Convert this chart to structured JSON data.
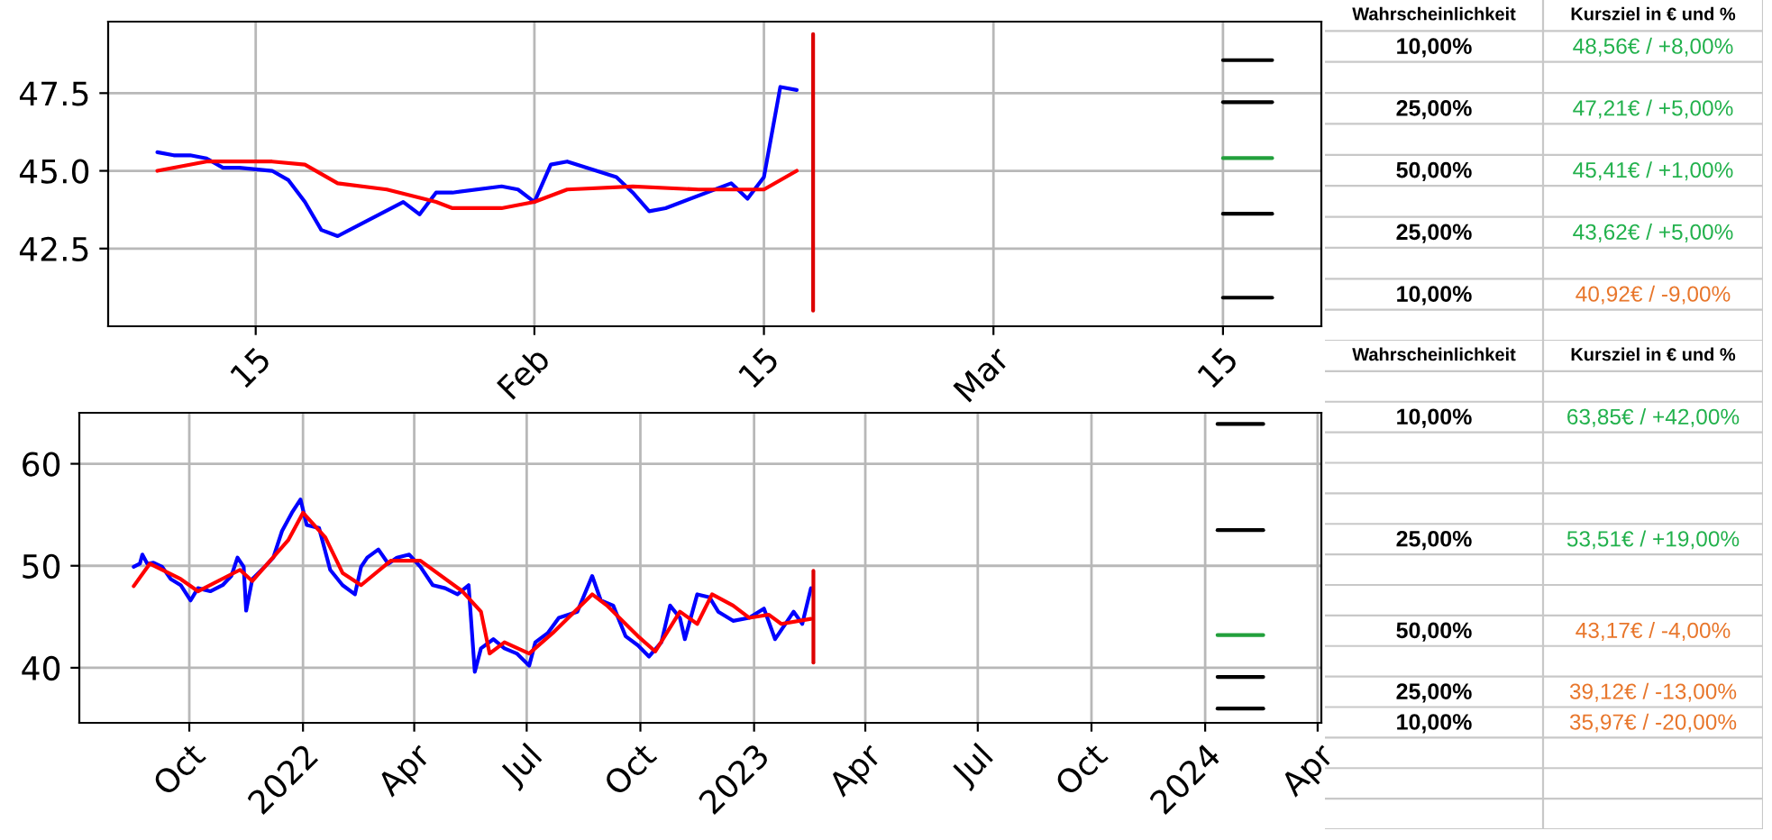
{
  "chart_data": [
    {
      "type": "line",
      "grid": true,
      "xlim": [
        "2023-01-06",
        "2023-03-21"
      ],
      "ylim": [
        40.0,
        49.8
      ],
      "xticks": [
        {
          "value": "2023-01-15",
          "label": "15"
        },
        {
          "value": "2023-02-01",
          "label": "Feb"
        },
        {
          "value": "2023-02-15",
          "label": "15"
        },
        {
          "value": "2023-03-01",
          "label": "Mar"
        },
        {
          "value": "2023-03-15",
          "label": "15"
        }
      ],
      "yticks": [
        42.5,
        {
          "value": 45,
          "label": "45.0"
        },
        47.5
      ],
      "series": [
        {
          "color": "#0000ff",
          "x": [
            "2023-01-09",
            "2023-01-10",
            "2023-01-11",
            "2023-01-12",
            "2023-01-13",
            "2023-01-14",
            "2023-01-16",
            "2023-01-17",
            "2023-01-18",
            "2023-01-19",
            "2023-01-20",
            "2023-01-24",
            "2023-01-25",
            "2023-01-26",
            "2023-01-27",
            "2023-01-30",
            "2023-01-31",
            "2023-02-01",
            "2023-02-02",
            "2023-02-03",
            "2023-02-06",
            "2023-02-07",
            "2023-02-08",
            "2023-02-09",
            "2023-02-13",
            "2023-02-14",
            "2023-02-15",
            "2023-02-16",
            "2023-02-17"
          ],
          "values": [
            45.6,
            45.5,
            45.5,
            45.4,
            45.1,
            45.1,
            45.0,
            44.7,
            44.0,
            43.1,
            42.9,
            44.0,
            43.6,
            44.3,
            44.3,
            44.5,
            44.4,
            44.0,
            45.2,
            45.3,
            44.8,
            44.3,
            43.7,
            43.8,
            44.6,
            44.1,
            44.8,
            47.7,
            47.6
          ]
        },
        {
          "color": "#ff0000",
          "x": [
            "2023-01-09",
            "2023-01-12",
            "2023-01-16",
            "2023-01-18",
            "2023-01-20",
            "2023-01-23",
            "2023-01-26",
            "2023-01-27",
            "2023-01-30",
            "2023-02-01",
            "2023-02-03",
            "2023-02-07",
            "2023-02-11",
            "2023-02-15",
            "2023-02-17"
          ],
          "values": [
            45.0,
            45.3,
            45.3,
            45.2,
            44.6,
            44.4,
            44.0,
            43.8,
            43.8,
            44.0,
            44.4,
            44.5,
            44.4,
            44.4,
            45.0
          ]
        },
        {
          "color": "#dd0000",
          "x": [
            "2023-02-18",
            "2023-02-18"
          ],
          "values": [
            49.4,
            40.5
          ]
        },
        {
          "color": "#000000",
          "x": [
            "2023-03-15",
            "2023-03-18"
          ],
          "values": [
            48.56,
            48.56
          ]
        },
        {
          "color": "#000000",
          "x": [
            "2023-03-15",
            "2023-03-18"
          ],
          "values": [
            47.21,
            47.21
          ]
        },
        {
          "color": "#22a03c",
          "x": [
            "2023-03-15",
            "2023-03-18"
          ],
          "values": [
            45.41,
            45.41
          ]
        },
        {
          "color": "#000000",
          "x": [
            "2023-03-15",
            "2023-03-18"
          ],
          "values": [
            43.62,
            43.62
          ]
        },
        {
          "color": "#000000",
          "x": [
            "2023-03-15",
            "2023-03-18"
          ],
          "values": [
            40.92,
            40.92
          ]
        }
      ]
    },
    {
      "type": "other",
      "categories": [
        "Wahrscheinlichkeit",
        "Kursziel in € und %"
      ],
      "cell_labels": [
        [
          "10,00%",
          "48,56€ / +8,00%"
        ],
        [
          null,
          null
        ],
        [
          "25,00%",
          "47,21€ / +5,00%"
        ],
        [
          null,
          null
        ],
        [
          "50,00%",
          "45,41€ / +1,00%"
        ],
        [
          null,
          null
        ],
        [
          "25,00%",
          "43,62€ / +5,00%"
        ],
        [
          null,
          null
        ],
        [
          "10,00%",
          "40,92€ / -9,00%"
        ],
        [
          null,
          null
        ]
      ],
      "colors": [
        [
          "#000000",
          "#22b14c"
        ],
        [
          null,
          null
        ],
        [
          "#000000",
          "#22b14c"
        ],
        [
          null,
          null
        ],
        [
          "#000000",
          "#22b14c"
        ],
        [
          null,
          null
        ],
        [
          "#000000",
          "#22b14c"
        ],
        [
          null,
          null
        ],
        [
          "#000000",
          "#e8762b"
        ],
        [
          null,
          null
        ]
      ]
    },
    {
      "type": "line",
      "grid": true,
      "xlim": [
        "2021-07-04",
        "2024-04-04"
      ],
      "ylim": [
        34.6,
        65.0
      ],
      "xticks": [
        {
          "value": "2021-10-01",
          "label": "Oct"
        },
        {
          "value": "2022-01-01",
          "label": "2022"
        },
        {
          "value": "2022-04-01",
          "label": "Apr"
        },
        {
          "value": "2022-07-01",
          "label": "Jul"
        },
        {
          "value": "2022-10-01",
          "label": "Oct"
        },
        {
          "value": "2023-01-01",
          "label": "2023"
        },
        {
          "value": "2023-04-01",
          "label": "Apr"
        },
        {
          "value": "2023-07-01",
          "label": "Jul"
        },
        {
          "value": "2023-10-01",
          "label": "Oct"
        },
        {
          "value": "2024-01-01",
          "label": "2024"
        },
        {
          "value": "2024-04-01",
          "label": "Apr"
        }
      ],
      "yticks": [
        40,
        50,
        60
      ],
      "series": [
        {
          "color": "#0000ff",
          "x": [
            "2021-08-17",
            "2021-08-22",
            "2021-08-24",
            "2021-08-28",
            "2021-09-02",
            "2021-09-09",
            "2021-09-16",
            "2021-09-24",
            "2021-10-02",
            "2021-10-08",
            "2021-10-18",
            "2021-10-28",
            "2021-11-04",
            "2021-11-09",
            "2021-11-14",
            "2021-11-16",
            "2021-11-21",
            "2021-12-01",
            "2021-12-08",
            "2021-12-15",
            "2021-12-23",
            "2021-12-30",
            "2022-01-04",
            "2022-01-14",
            "2022-01-23",
            "2022-02-02",
            "2022-02-12",
            "2022-02-17",
            "2022-02-22",
            "2022-03-03",
            "2022-03-11",
            "2022-03-18",
            "2022-03-28",
            "2022-04-06",
            "2022-04-16",
            "2022-04-26",
            "2022-05-06",
            "2022-05-15",
            "2022-05-20",
            "2022-05-25",
            "2022-06-04",
            "2022-06-13",
            "2022-06-23",
            "2022-07-03",
            "2022-07-08",
            "2022-07-18",
            "2022-07-27",
            "2022-08-11",
            "2022-08-23",
            "2022-08-30",
            "2022-09-09",
            "2022-09-19",
            "2022-09-29",
            "2022-10-08",
            "2022-10-18",
            "2022-10-25",
            "2022-11-02",
            "2022-11-06",
            "2022-11-16",
            "2022-11-26",
            "2022-12-03",
            "2022-12-15",
            "2022-12-28",
            "2023-01-09",
            "2023-01-18",
            "2023-01-28",
            "2023-02-02",
            "2023-02-09",
            "2023-02-16"
          ],
          "values": [
            49.9,
            50.2,
            51.1,
            50.2,
            50.3,
            49.9,
            48.7,
            48.1,
            46.6,
            47.8,
            47.5,
            48.1,
            49.0,
            50.8,
            49.9,
            45.6,
            48.7,
            49.9,
            50.8,
            53.4,
            55.2,
            56.5,
            54.0,
            53.7,
            49.6,
            48.1,
            47.2,
            49.9,
            50.8,
            51.6,
            50.2,
            50.8,
            51.1,
            49.9,
            48.1,
            47.8,
            47.2,
            48.1,
            39.6,
            41.9,
            42.8,
            41.9,
            41.4,
            40.2,
            42.5,
            43.4,
            44.9,
            45.5,
            49.0,
            46.6,
            46.1,
            43.1,
            42.2,
            41.1,
            42.5,
            46.1,
            44.9,
            42.8,
            47.2,
            46.9,
            45.5,
            44.6,
            44.9,
            45.8,
            42.8,
            44.6,
            45.5,
            44.3,
            47.8
          ]
        },
        {
          "color": "#ff0000",
          "x": [
            "2021-08-17",
            "2021-08-30",
            "2021-09-24",
            "2021-10-08",
            "2021-11-11",
            "2021-11-21",
            "2021-12-20",
            "2022-01-01",
            "2022-01-19",
            "2022-02-02",
            "2022-02-17",
            "2022-03-13",
            "2022-04-06",
            "2022-05-10",
            "2022-05-25",
            "2022-06-01",
            "2022-06-13",
            "2022-07-03",
            "2022-07-22",
            "2022-08-23",
            "2022-09-04",
            "2022-09-29",
            "2022-10-13",
            "2022-11-02",
            "2022-11-16",
            "2022-11-28",
            "2022-12-15",
            "2022-12-28",
            "2023-01-13",
            "2023-01-23",
            "2023-02-16"
          ],
          "values": [
            48.0,
            50.2,
            48.7,
            47.5,
            49.6,
            48.5,
            52.5,
            55.2,
            52.8,
            49.3,
            48.1,
            50.5,
            50.5,
            47.5,
            45.5,
            41.4,
            42.5,
            41.4,
            43.4,
            47.2,
            46.1,
            43.1,
            41.6,
            45.5,
            44.3,
            47.2,
            46.1,
            44.9,
            45.2,
            44.3,
            44.8
          ]
        },
        {
          "color": "#dd0000",
          "x": [
            "2023-02-18",
            "2023-02-18"
          ],
          "values": [
            49.5,
            40.5
          ]
        },
        {
          "color": "#000000",
          "x": [
            "2024-01-11",
            "2024-02-17"
          ],
          "values": [
            63.9,
            63.9
          ]
        },
        {
          "color": "#000000",
          "x": [
            "2024-01-11",
            "2024-02-17"
          ],
          "values": [
            53.5,
            53.5
          ]
        },
        {
          "color": "#22a03c",
          "x": [
            "2024-01-11",
            "2024-02-17"
          ],
          "values": [
            43.2,
            43.2
          ]
        },
        {
          "color": "#000000",
          "x": [
            "2024-01-11",
            "2024-02-17"
          ],
          "values": [
            39.1,
            39.1
          ]
        },
        {
          "color": "#000000",
          "x": [
            "2024-01-11",
            "2024-02-17"
          ],
          "values": [
            36.0,
            36.0
          ]
        }
      ]
    },
    {
      "type": "other",
      "categories": [
        "Wahrscheinlichkeit",
        "Kursziel in € und %"
      ],
      "cell_labels": [
        [
          null,
          null
        ],
        [
          "10,00%",
          "63,85€ / +42,00%"
        ],
        [
          null,
          null
        ],
        [
          null,
          null
        ],
        [
          null,
          null
        ],
        [
          "25,00%",
          "53,51€ / +19,00%"
        ],
        [
          null,
          null
        ],
        [
          null,
          null
        ],
        [
          "50,00%",
          "43,17€ / -4,00%"
        ],
        [
          null,
          null
        ],
        [
          "25,00%",
          "39,12€ / -13,00%"
        ],
        [
          "10,00%",
          "35,97€ / -20,00%"
        ],
        [
          null,
          null
        ],
        [
          null,
          null
        ],
        [
          null,
          null
        ]
      ],
      "colors": [
        [
          null,
          null
        ],
        [
          "#000000",
          "#22b14c"
        ],
        [
          null,
          null
        ],
        [
          null,
          null
        ],
        [
          null,
          null
        ],
        [
          "#000000",
          "#22b14c"
        ],
        [
          null,
          null
        ],
        [
          null,
          null
        ],
        [
          "#000000",
          "#e8762b"
        ],
        [
          null,
          null
        ],
        [
          "#000000",
          "#e8762b"
        ],
        [
          "#000000",
          "#e8762b"
        ],
        [
          null,
          null
        ],
        [
          null,
          null
        ],
        [
          null,
          null
        ]
      ]
    }
  ]
}
